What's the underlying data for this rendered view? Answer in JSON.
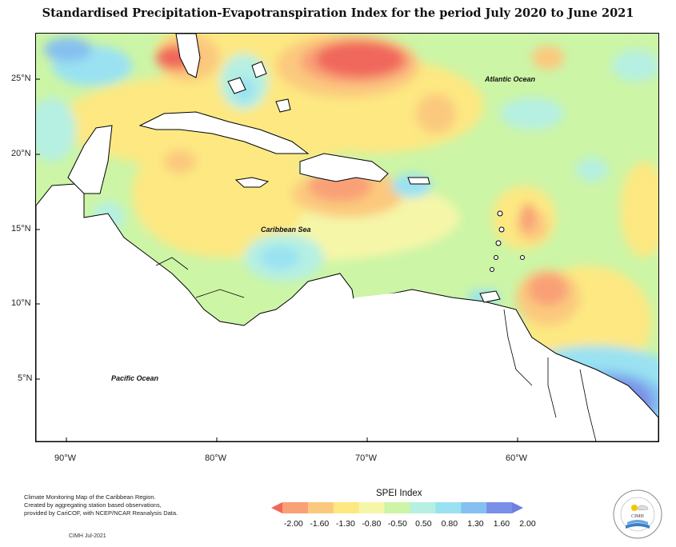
{
  "title": "Standardised Precipitation-Evapotranspiration Index for the period July 2020 to June 2021",
  "map": {
    "latitude_labels": [
      "25°N",
      "20°N",
      "15°N",
      "10°N",
      "5°N"
    ],
    "longitude_labels": [
      "90°W",
      "80°W",
      "70°W",
      "60°W"
    ],
    "place_labels": {
      "atlantic": "Atlantic Ocean",
      "caribbean": "Caribbean Sea",
      "pacific": "Pacific Ocean"
    },
    "land_fill": "#ffffff",
    "coastline_color": "#000000"
  },
  "legend": {
    "title": "SPEI Index",
    "values": [
      "-2.00",
      "-1.60",
      "-1.30",
      "-0.80",
      "-0.50",
      "0.50",
      "0.80",
      "1.30",
      "1.60",
      "2.00"
    ],
    "colors": [
      "#f0685c",
      "#f9a077",
      "#fbc97e",
      "#fde882",
      "#f6f6a8",
      "#ccf5a6",
      "#b6f0e2",
      "#9ae2f2",
      "#86c0f0",
      "#7a8fe8",
      "#6f7ee0"
    ]
  },
  "footer": {
    "note_line1": "Climate Monitoring Map of the Caribbean Region.",
    "note_line2": "Created by aggregating station based observations,",
    "note_line3": "provided by CariCOF, with NCEP/NCAR Reanalysis Data.",
    "credit": "CIMH Jul-2021"
  },
  "logo": {
    "text": "CIMH"
  }
}
